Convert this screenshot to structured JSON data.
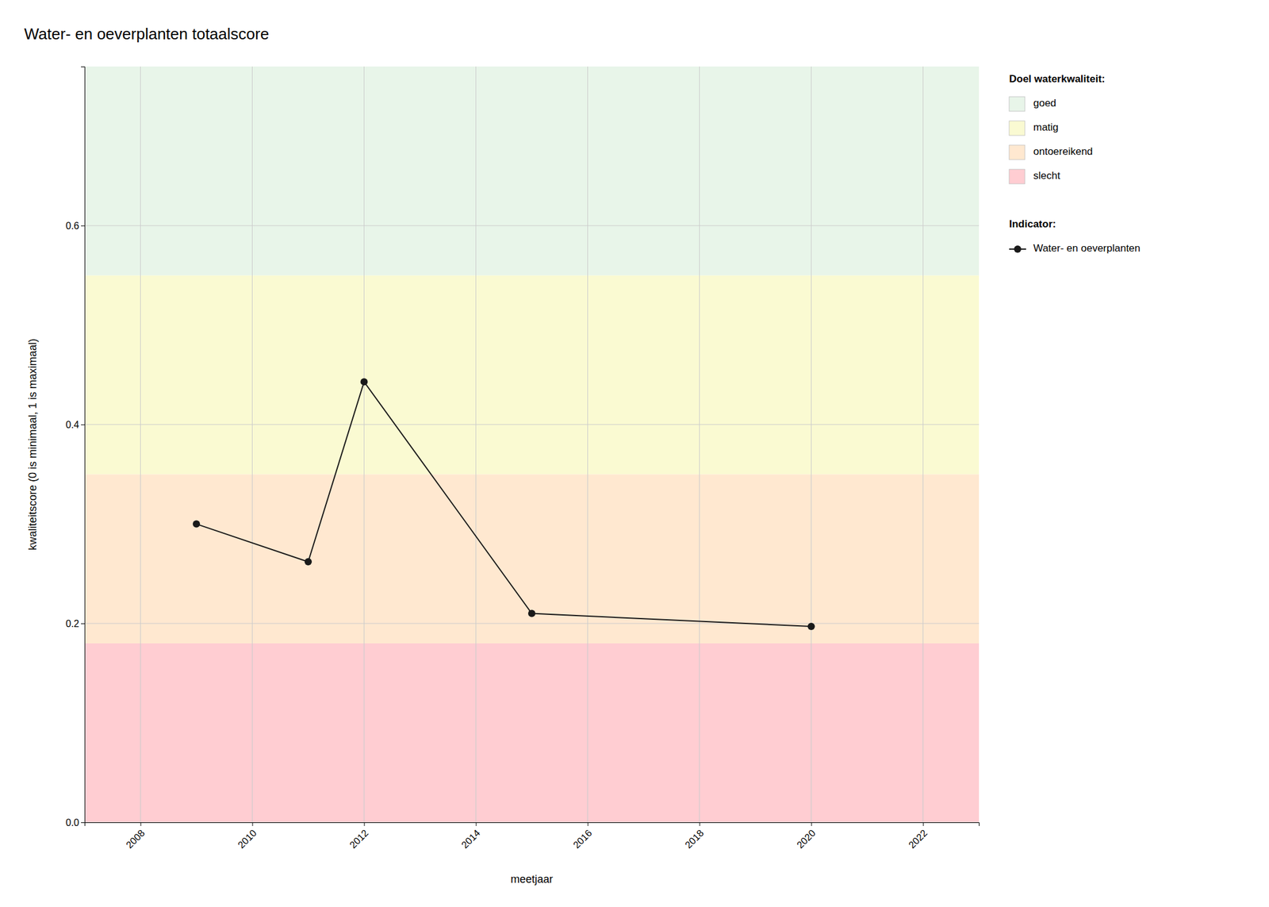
{
  "chart_data": {
    "type": "line",
    "title": "Water- en oeverplanten totaalscore",
    "x_label": "meetjaar",
    "y_label": "kwaliteitscore (0 is minimaal, 1 is maximaal)",
    "xlim": [
      2007,
      2023
    ],
    "ylim": [
      0,
      0.76
    ],
    "xticks": [
      2008,
      2010,
      2012,
      2014,
      2016,
      2018,
      2020,
      2022
    ],
    "yticks": [
      {
        "value": 0,
        "label": "0.0"
      },
      0.2,
      0.4,
      0.6
    ],
    "x": [
      2009,
      2011,
      2012,
      2015,
      2020
    ],
    "series": [
      {
        "name": "Water- en oeverplanten",
        "color": "#1a1a1a",
        "marker": "circle",
        "values": [
          0.3,
          0.262,
          0.443,
          0.21,
          0.197
        ]
      }
    ],
    "series_title": "Indicator:",
    "bands_title": "Doel waterkwaliteit:",
    "bands": [
      {
        "ymin": 0.0,
        "ymax": 0.18,
        "color": "#FFCDD2",
        "label": "slecht"
      },
      {
        "ymin": 0.18,
        "ymax": 0.35,
        "color": "#FFE8D0",
        "label": "ontoereikend"
      },
      {
        "ymin": 0.35,
        "ymax": 0.55,
        "color": "#FAFAD2",
        "label": "matig"
      },
      {
        "ymin": 0.55,
        "ymax": 0.76,
        "color": "#E8F5E9",
        "label": "goed"
      }
    ],
    "grid": true,
    "legend": "right"
  }
}
